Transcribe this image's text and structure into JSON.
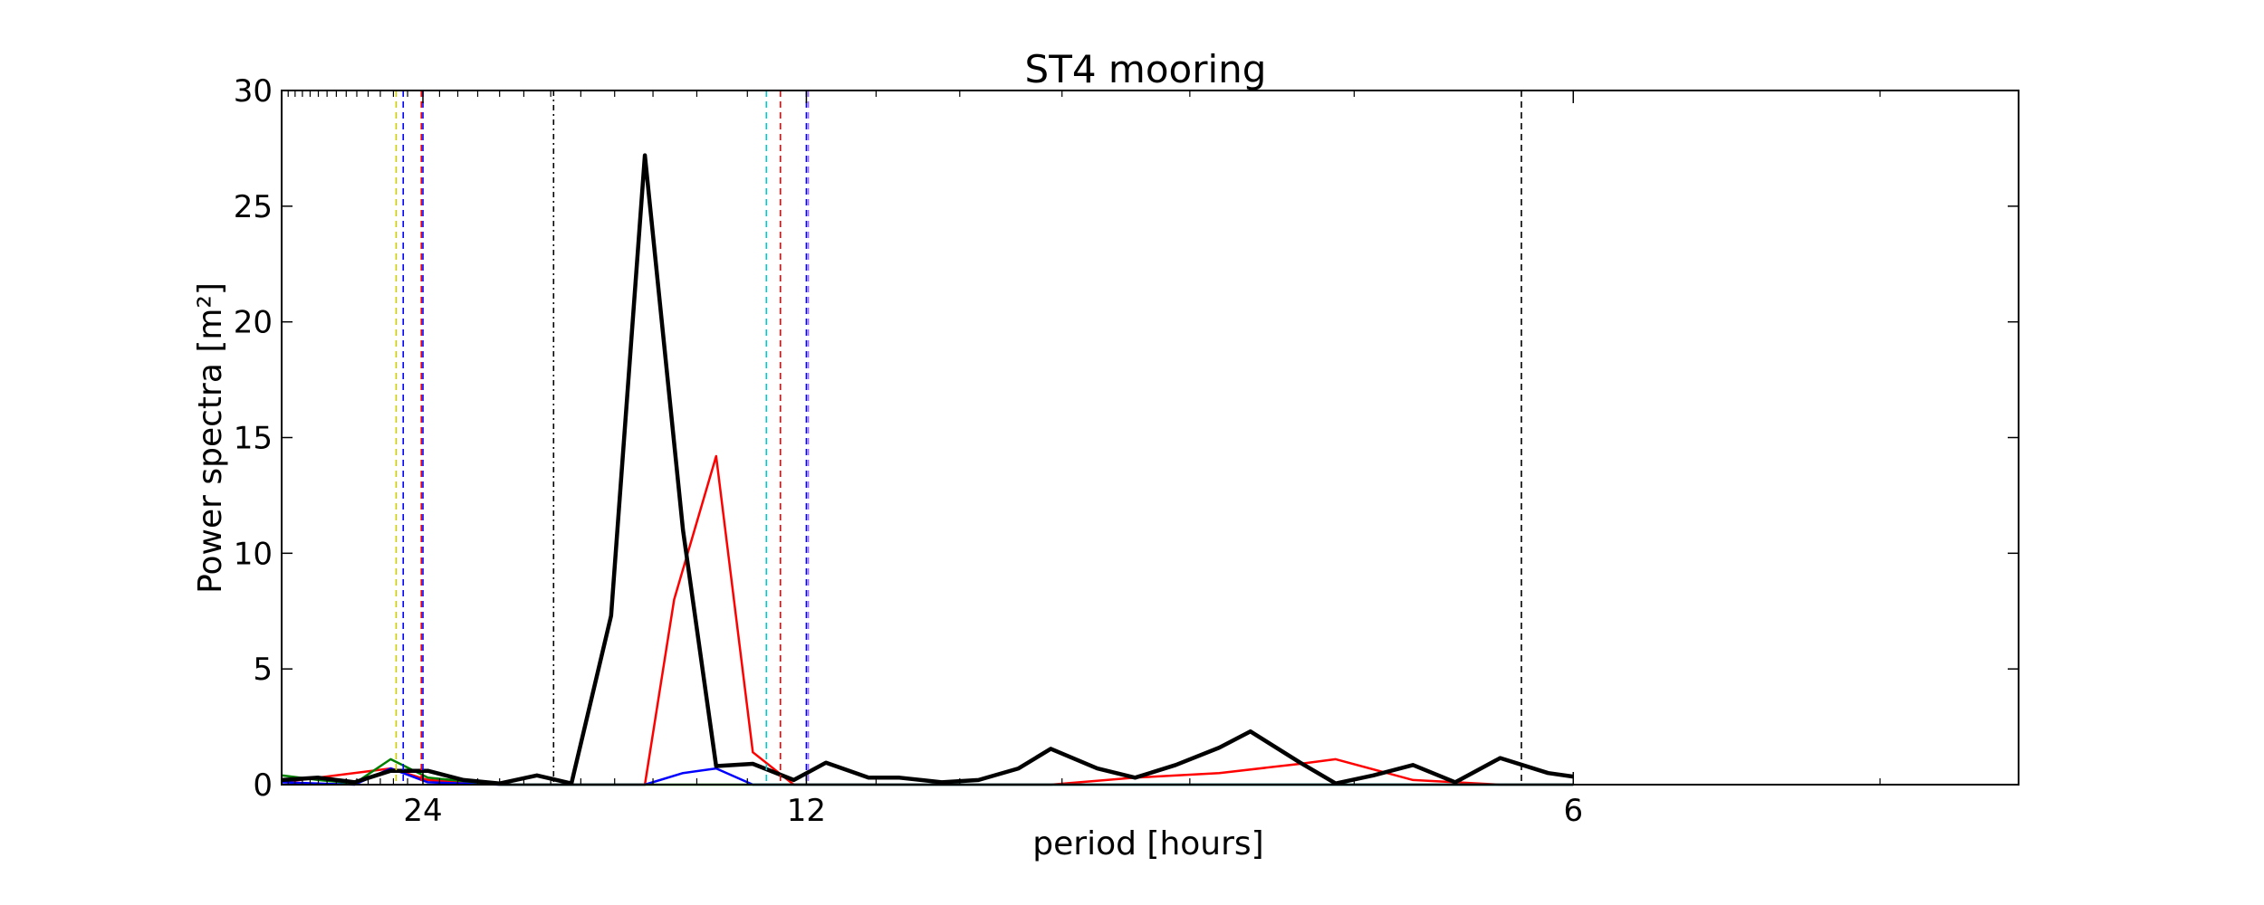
{
  "chart_data": {
    "type": "line",
    "title": "ST4 mooring",
    "xlabel": "period [hours]",
    "ylabel": "Power spectra [m²]",
    "x_scale": "reciprocal",
    "xlim": [
      38,
      4.65
    ],
    "ylim": [
      0,
      30
    ],
    "grid": false,
    "x_tick_labels": [
      {
        "value": 24,
        "label": "24"
      },
      {
        "value": 12,
        "label": "12"
      },
      {
        "value": 6,
        "label": "6"
      }
    ],
    "y_ticks": [
      0,
      5,
      10,
      15,
      20,
      25,
      30
    ],
    "series": [
      {
        "color": "#000000",
        "points": [
          [
            38,
            0.2
          ],
          [
            33,
            0.3
          ],
          [
            29.2,
            0.1
          ],
          [
            26.2,
            0.6
          ],
          [
            23.7,
            0.6
          ],
          [
            21.7,
            0.2
          ],
          [
            20,
            0.05
          ],
          [
            18.5,
            0.4
          ],
          [
            17.3,
            0.05
          ],
          [
            16.1,
            7.3
          ],
          [
            15.2,
            27.2
          ],
          [
            14.3,
            11
          ],
          [
            13.6,
            0.8
          ],
          [
            12.9,
            0.9
          ],
          [
            12.2,
            0.2
          ],
          [
            11.7,
            0.95
          ],
          [
            11.1,
            0.3
          ],
          [
            10.7,
            0.3
          ],
          [
            10.2,
            0.1
          ],
          [
            9.8,
            0.2
          ],
          [
            9.4,
            0.7
          ],
          [
            9.1,
            1.55
          ],
          [
            8.7,
            0.7
          ],
          [
            8.4,
            0.3
          ],
          [
            8.1,
            0.85
          ],
          [
            7.8,
            1.6
          ],
          [
            7.6,
            2.3
          ],
          [
            7.3,
            0.95
          ],
          [
            7.1,
            0.05
          ],
          [
            6.9,
            0.4
          ],
          [
            6.7,
            0.85
          ],
          [
            6.5,
            0.1
          ],
          [
            6.3,
            1.15
          ],
          [
            6.1,
            0.5
          ],
          [
            6,
            0.35
          ]
        ]
      },
      {
        "color": "#ff0000",
        "points": [
          [
            38,
            0.1
          ],
          [
            26.2,
            0.7
          ],
          [
            23.7,
            0.2
          ],
          [
            20,
            0
          ],
          [
            15.2,
            0
          ],
          [
            14.5,
            8
          ],
          [
            13.6,
            14.2
          ],
          [
            12.9,
            1.4
          ],
          [
            12.2,
            0
          ],
          [
            9.1,
            0
          ],
          [
            8.4,
            0.3
          ],
          [
            7.8,
            0.5
          ],
          [
            7.3,
            0.9
          ],
          [
            7.1,
            1.1
          ],
          [
            6.7,
            0.2
          ],
          [
            6.3,
            0
          ],
          [
            6,
            0
          ]
        ]
      },
      {
        "color": "#0000ff",
        "points": [
          [
            38,
            0.1
          ],
          [
            29.2,
            0
          ],
          [
            26.2,
            0.7
          ],
          [
            23.7,
            0.1
          ],
          [
            20,
            0
          ],
          [
            15.2,
            0
          ],
          [
            14.3,
            0.5
          ],
          [
            13.6,
            0.7
          ],
          [
            12.9,
            0
          ],
          [
            6,
            0
          ]
        ]
      },
      {
        "color": "#008000",
        "points": [
          [
            38,
            0.4
          ],
          [
            33,
            0.2
          ],
          [
            29.2,
            0.05
          ],
          [
            26.2,
            1.1
          ],
          [
            23.7,
            0.3
          ],
          [
            20,
            0
          ],
          [
            6,
            0
          ]
        ]
      }
    ],
    "vertical_lines": [
      {
        "x": 25.8,
        "color": "#cccc00",
        "style": "dashed"
      },
      {
        "x": 25.3,
        "color": "#0000ff",
        "style": "dashed"
      },
      {
        "x": 24.1,
        "color": "#ff0000",
        "style": "dashed"
      },
      {
        "x": 24.0,
        "color": "#0000ff",
        "style": "dashed"
      },
      {
        "x": 17.9,
        "color": "#000000",
        "style": "dashdot"
      },
      {
        "x": 12.66,
        "color": "#00cccc",
        "style": "dashed"
      },
      {
        "x": 12.42,
        "color": "#ff0000",
        "style": "dashed"
      },
      {
        "x": 12.0,
        "color": "#0000ff",
        "style": "dashed"
      },
      {
        "x": 11.97,
        "color": "#9966ff",
        "style": "dashed"
      },
      {
        "x": 6.21,
        "color": "#000000",
        "style": "dashed"
      }
    ]
  }
}
